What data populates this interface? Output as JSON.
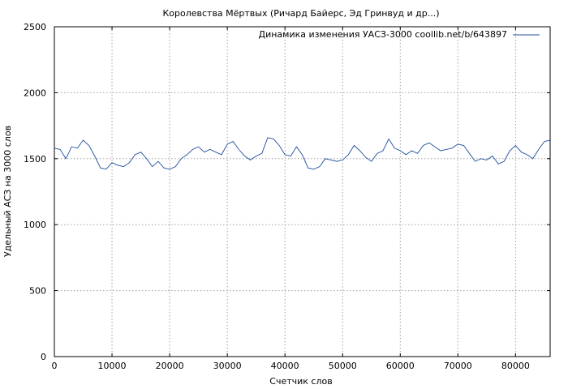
{
  "chart_data": {
    "type": "line",
    "title": "Королевства Мёртвых (Ричард Байерс, Эд Гринвуд и др...)",
    "xlabel": "Счетчик слов",
    "ylabel": "Удельный АСЗ на 3000 слов",
    "xlim": [
      0,
      86000
    ],
    "ylim": [
      0,
      2500
    ],
    "xticks": [
      0,
      10000,
      20000,
      30000,
      40000,
      50000,
      60000,
      70000,
      80000
    ],
    "yticks": [
      0,
      500,
      1000,
      1500,
      2000,
      2500
    ],
    "grid": true,
    "legend_position": "top-right",
    "series": [
      {
        "name": "Динамика изменения УАСЗ-3000 coollib.net/b/643897",
        "color": "#1f4e9e",
        "x": [
          0,
          1000,
          2000,
          3000,
          4000,
          5000,
          6000,
          7000,
          8000,
          9000,
          10000,
          11000,
          12000,
          13000,
          14000,
          15000,
          16000,
          17000,
          18000,
          19000,
          20000,
          21000,
          22000,
          23000,
          24000,
          25000,
          26000,
          27000,
          28000,
          29000,
          30000,
          31000,
          32000,
          33000,
          34000,
          35000,
          36000,
          37000,
          38000,
          39000,
          40000,
          41000,
          42000,
          43000,
          44000,
          45000,
          46000,
          47000,
          48000,
          49000,
          50000,
          51000,
          52000,
          53000,
          54000,
          55000,
          56000,
          57000,
          58000,
          59000,
          60000,
          61000,
          62000,
          63000,
          64000,
          65000,
          66000,
          67000,
          68000,
          69000,
          70000,
          71000,
          72000,
          73000,
          74000,
          75000,
          76000,
          77000,
          78000,
          79000,
          80000,
          81000,
          82000,
          83000,
          84000,
          85000,
          86000
        ],
        "values": [
          1580,
          1570,
          1500,
          1590,
          1580,
          1640,
          1600,
          1520,
          1430,
          1420,
          1470,
          1450,
          1440,
          1470,
          1530,
          1550,
          1500,
          1440,
          1480,
          1430,
          1420,
          1440,
          1500,
          1530,
          1570,
          1590,
          1550,
          1570,
          1550,
          1530,
          1610,
          1630,
          1570,
          1520,
          1490,
          1520,
          1540,
          1660,
          1650,
          1600,
          1530,
          1520,
          1590,
          1530,
          1430,
          1420,
          1440,
          1500,
          1490,
          1480,
          1490,
          1530,
          1600,
          1560,
          1510,
          1480,
          1540,
          1560,
          1650,
          1580,
          1560,
          1530,
          1560,
          1540,
          1600,
          1620,
          1590,
          1560,
          1570,
          1580,
          1610,
          1600,
          1540,
          1480,
          1500,
          1490,
          1520,
          1460,
          1480,
          1560,
          1600,
          1550,
          1530,
          1500,
          1570,
          1630,
          1640
        ]
      }
    ]
  }
}
